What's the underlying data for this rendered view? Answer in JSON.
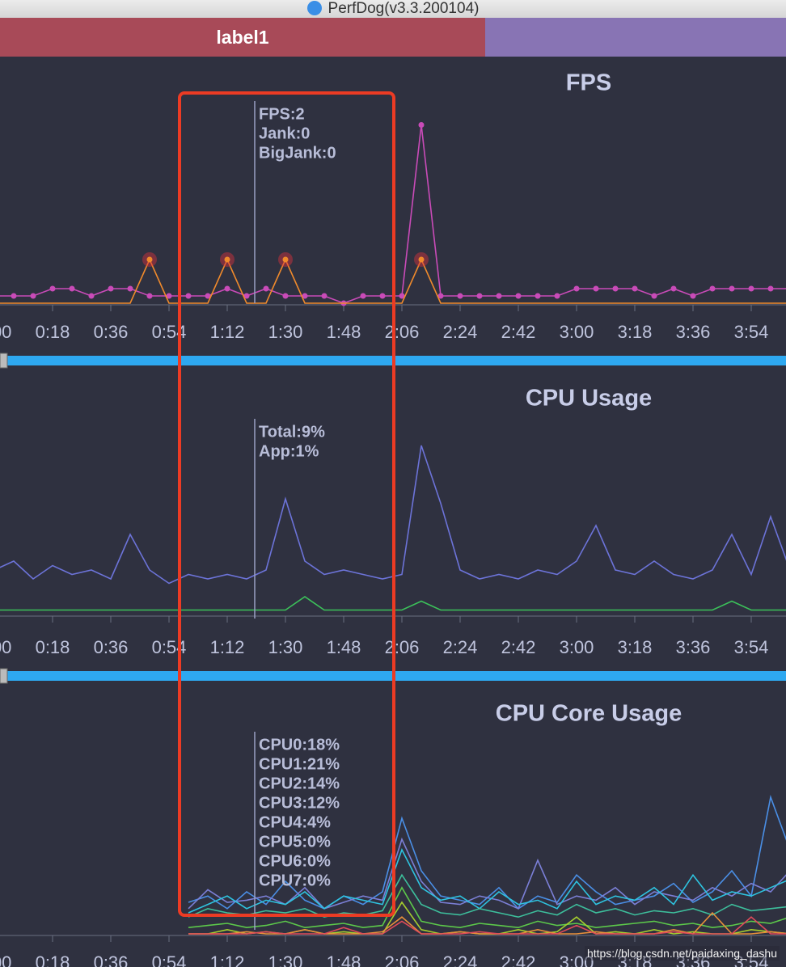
{
  "window_title": "PerfDog(v3.3.200104)",
  "label_bar": {
    "label": "label1"
  },
  "watermark": "https://blog.csdn.net/paidaxing_dashu",
  "chart_data": [
    {
      "type": "line",
      "title": "FPS",
      "x": [
        0,
        6,
        12,
        18,
        24,
        30,
        36,
        42,
        48,
        54,
        60,
        66,
        72,
        78,
        84,
        90,
        96,
        102,
        108,
        114,
        120,
        126,
        132,
        138,
        144,
        150,
        156,
        162,
        168,
        174,
        180,
        186,
        192,
        198,
        204,
        210,
        216,
        222,
        228,
        234,
        240,
        246
      ],
      "xlim": [
        0,
        246
      ],
      "xticks": [
        {
          "value": 0,
          "label": "0:00"
        },
        {
          "value": 18,
          "label": "0:18"
        },
        {
          "value": 36,
          "label": "0:36"
        },
        {
          "value": 54,
          "label": "0:54"
        },
        {
          "value": 72,
          "label": "1:12"
        },
        {
          "value": 90,
          "label": "1:30"
        },
        {
          "value": 108,
          "label": "1:48"
        },
        {
          "value": 126,
          "label": "2:06"
        },
        {
          "value": 144,
          "label": "2:24"
        },
        {
          "value": 162,
          "label": "2:42"
        },
        {
          "value": 180,
          "label": "3:00"
        },
        {
          "value": 198,
          "label": "3:18"
        },
        {
          "value": 216,
          "label": "3:36"
        },
        {
          "value": 234,
          "label": "3:54"
        }
      ],
      "ylim": [
        0,
        60
      ],
      "y2lim": [
        0,
        5
      ],
      "series": [
        {
          "name": "FPS",
          "color": "#c94bb8",
          "markers": true,
          "values": [
            2,
            2,
            2,
            4,
            4,
            2,
            4,
            4,
            2,
            2,
            2,
            2,
            4,
            2,
            4,
            2,
            2,
            2,
            0,
            2,
            2,
            2,
            49,
            2,
            2,
            2,
            2,
            2,
            2,
            2,
            4,
            4,
            4,
            4,
            2,
            4,
            2,
            4,
            4,
            4,
            4,
            4
          ]
        },
        {
          "name": "Jank",
          "color": "#f08a2c",
          "axis": "y2",
          "values": [
            0,
            0,
            0,
            0,
            0,
            0,
            0,
            0,
            1,
            0,
            0,
            0,
            1,
            0,
            0,
            1,
            0,
            0,
            0,
            0,
            0,
            0,
            1,
            0,
            0,
            0,
            0,
            0,
            0,
            0,
            0,
            0,
            0,
            0,
            0,
            0,
            0,
            0,
            0,
            0,
            0,
            0
          ]
        }
      ],
      "annotations": [
        "FPS:2",
        "Jank:0",
        "BigJank:0"
      ]
    },
    {
      "type": "line",
      "title": "CPU Usage",
      "x": [
        0,
        6,
        12,
        18,
        24,
        30,
        36,
        42,
        48,
        54,
        60,
        66,
        72,
        78,
        84,
        90,
        96,
        102,
        108,
        114,
        120,
        126,
        132,
        138,
        144,
        150,
        156,
        162,
        168,
        174,
        180,
        186,
        192,
        198,
        204,
        210,
        216,
        222,
        228,
        234,
        240,
        246
      ],
      "xlim": [
        0,
        246
      ],
      "xticks": [
        {
          "value": 0,
          "label": "0:00"
        },
        {
          "value": 18,
          "label": "0:18"
        },
        {
          "value": 36,
          "label": "0:36"
        },
        {
          "value": 54,
          "label": "0:54"
        },
        {
          "value": 72,
          "label": "1:12"
        },
        {
          "value": 90,
          "label": "1:30"
        },
        {
          "value": 108,
          "label": "1:48"
        },
        {
          "value": 126,
          "label": "2:06"
        },
        {
          "value": 144,
          "label": "2:24"
        },
        {
          "value": 162,
          "label": "2:42"
        },
        {
          "value": 180,
          "label": "3:00"
        },
        {
          "value": 198,
          "label": "3:18"
        },
        {
          "value": 216,
          "label": "3:36"
        },
        {
          "value": 234,
          "label": "3:54"
        }
      ],
      "ylim": [
        0,
        50
      ],
      "series": [
        {
          "name": "Total",
          "color": "#6c73d8",
          "values": [
            10,
            12,
            8,
            11,
            9,
            10,
            8,
            18,
            10,
            7,
            9,
            8,
            9,
            8,
            10,
            26,
            12,
            9,
            10,
            9,
            8,
            9,
            38,
            25,
            10,
            8,
            9,
            8,
            10,
            9,
            12,
            20,
            10,
            9,
            12,
            9,
            8,
            10,
            18,
            9,
            22,
            10
          ]
        },
        {
          "name": "App",
          "color": "#3cc25a",
          "values": [
            1,
            1,
            1,
            1,
            1,
            1,
            1,
            1,
            1,
            1,
            1,
            1,
            1,
            1,
            1,
            1,
            4,
            1,
            1,
            1,
            1,
            1,
            3,
            1,
            1,
            1,
            1,
            1,
            1,
            1,
            1,
            1,
            1,
            1,
            1,
            1,
            1,
            1,
            3,
            1,
            1,
            1
          ]
        }
      ],
      "annotations": [
        "Total:9%",
        "App:1%"
      ]
    },
    {
      "type": "line",
      "title": "CPU Core Usage",
      "x": [
        60,
        66,
        72,
        78,
        84,
        90,
        96,
        102,
        108,
        114,
        120,
        126,
        132,
        138,
        144,
        150,
        156,
        162,
        168,
        174,
        180,
        186,
        192,
        198,
        204,
        210,
        216,
        222,
        228,
        234,
        240,
        246
      ],
      "xlim": [
        0,
        246
      ],
      "xticks": [
        {
          "value": 0,
          "label": "0:00"
        },
        {
          "value": 18,
          "label": "0:18"
        },
        {
          "value": 36,
          "label": "0:36"
        },
        {
          "value": 54,
          "label": "0:54"
        },
        {
          "value": 72,
          "label": "1:12"
        },
        {
          "value": 90,
          "label": "1:30"
        },
        {
          "value": 108,
          "label": "1:48"
        },
        {
          "value": 126,
          "label": "2:06"
        },
        {
          "value": 144,
          "label": "2:24"
        },
        {
          "value": 162,
          "label": "2:42"
        },
        {
          "value": 180,
          "label": "3:00"
        },
        {
          "value": 198,
          "label": "3:18"
        },
        {
          "value": 216,
          "label": "3:36"
        },
        {
          "value": 234,
          "label": "3:54"
        }
      ],
      "ylim": [
        0,
        100
      ],
      "series": [
        {
          "name": "CPU0",
          "color": "#4a8fe6",
          "values": [
            15,
            18,
            12,
            20,
            14,
            25,
            16,
            12,
            18,
            14,
            20,
            55,
            30,
            18,
            16,
            14,
            22,
            12,
            18,
            15,
            28,
            20,
            14,
            16,
            18,
            24,
            15,
            20,
            30,
            18,
            65,
            40
          ]
        },
        {
          "name": "CPU1",
          "color": "#7b7fd6",
          "values": [
            12,
            21,
            15,
            16,
            18,
            14,
            22,
            12,
            15,
            18,
            16,
            45,
            25,
            15,
            14,
            18,
            16,
            12,
            35,
            14,
            18,
            16,
            22,
            14,
            20,
            18,
            16,
            22,
            18,
            24,
            20,
            30
          ]
        },
        {
          "name": "CPU2",
          "color": "#2ec4e0",
          "values": [
            10,
            14,
            18,
            12,
            16,
            14,
            20,
            12,
            18,
            16,
            14,
            40,
            22,
            16,
            18,
            12,
            20,
            14,
            16,
            12,
            25,
            14,
            18,
            16,
            22,
            14,
            28,
            16,
            20,
            18,
            22,
            26
          ]
        },
        {
          "name": "CPU3",
          "color": "#3dbf9c",
          "values": [
            8,
            12,
            10,
            9,
            11,
            10,
            12,
            8,
            10,
            9,
            11,
            28,
            14,
            10,
            9,
            12,
            10,
            8,
            11,
            9,
            14,
            10,
            12,
            9,
            11,
            10,
            12,
            9,
            14,
            11,
            12,
            13
          ]
        },
        {
          "name": "CPU4",
          "color": "#5cc84a",
          "values": [
            3,
            4,
            5,
            3,
            4,
            6,
            3,
            4,
            5,
            3,
            4,
            22,
            6,
            4,
            3,
            5,
            4,
            3,
            6,
            4,
            5,
            3,
            4,
            5,
            6,
            4,
            5,
            3,
            4,
            6,
            5,
            8
          ]
        },
        {
          "name": "CPU5",
          "color": "#a6cf2e",
          "values": [
            0,
            0,
            2,
            0,
            1,
            0,
            2,
            0,
            1,
            0,
            0,
            15,
            2,
            0,
            1,
            0,
            0,
            2,
            0,
            1,
            8,
            0,
            1,
            0,
            2,
            0,
            1,
            0,
            0,
            2,
            1,
            0
          ]
        },
        {
          "name": "CPU6",
          "color": "#e8903a",
          "values": [
            0,
            0,
            0,
            1,
            0,
            0,
            2,
            0,
            0,
            0,
            1,
            8,
            0,
            0,
            1,
            0,
            0,
            0,
            2,
            0,
            0,
            1,
            0,
            0,
            0,
            2,
            0,
            10,
            0,
            0,
            1,
            0
          ]
        },
        {
          "name": "CPU7",
          "color": "#e04b5a",
          "values": [
            0,
            0,
            0,
            0,
            1,
            0,
            0,
            0,
            3,
            0,
            0,
            6,
            0,
            0,
            0,
            1,
            0,
            0,
            0,
            0,
            4,
            0,
            0,
            0,
            0,
            1,
            0,
            0,
            0,
            8,
            0,
            0
          ]
        }
      ],
      "annotations": [
        "CPU0:18%",
        "CPU1:21%",
        "CPU2:14%",
        "CPU3:12%",
        "CPU4:4%",
        "CPU5:0%",
        "CPU6:0%",
        "CPU7:0%"
      ]
    }
  ]
}
